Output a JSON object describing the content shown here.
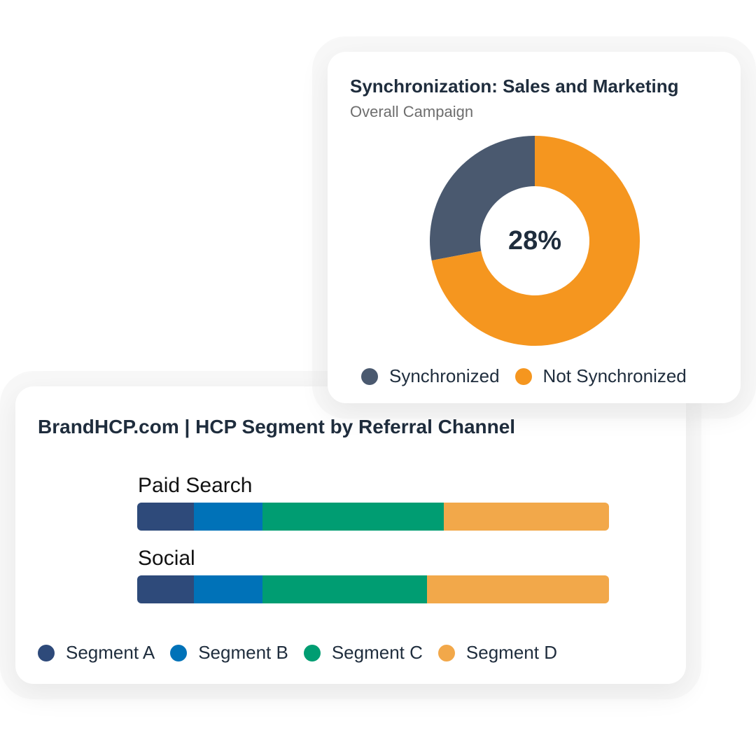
{
  "donut_card": {
    "title": "Synchronization: Sales and Marketing",
    "subtitle": "Overall Campaign",
    "center_label": "28%"
  },
  "bar_card": {
    "title": "BrandHCP.com | HCP Segment by Referral Channel"
  },
  "chart_data": [
    {
      "type": "pie",
      "title": "Synchronization: Sales and Marketing",
      "subtitle": "Overall Campaign",
      "labels": [
        "Synchronized",
        "Not Synchronized"
      ],
      "values": [
        28,
        72
      ],
      "colors": [
        "#4a596f",
        "#f5961f"
      ],
      "center_text": "28%",
      "legend": [
        "Synchronized",
        "Not Synchronized"
      ],
      "legend_position": "bottom"
    },
    {
      "type": "bar",
      "orientation": "horizontal",
      "stacked": true,
      "title": "BrandHCP.com | HCP Segment by Referral Channel",
      "categories": [
        "Paid Search",
        "Social"
      ],
      "series": [
        {
          "name": "Segment A",
          "color": "#2e4a7a",
          "values": [
            12,
            12
          ]
        },
        {
          "name": "Segment B",
          "color": "#0072b8",
          "values": [
            14.5,
            14.5
          ]
        },
        {
          "name": "Segment C",
          "color": "#009d72",
          "values": [
            38.5,
            35
          ]
        },
        {
          "name": "Segment D",
          "color": "#f2a84a",
          "values": [
            35,
            38.5
          ]
        }
      ],
      "xlim": [
        0,
        100
      ],
      "legend_position": "bottom"
    }
  ]
}
